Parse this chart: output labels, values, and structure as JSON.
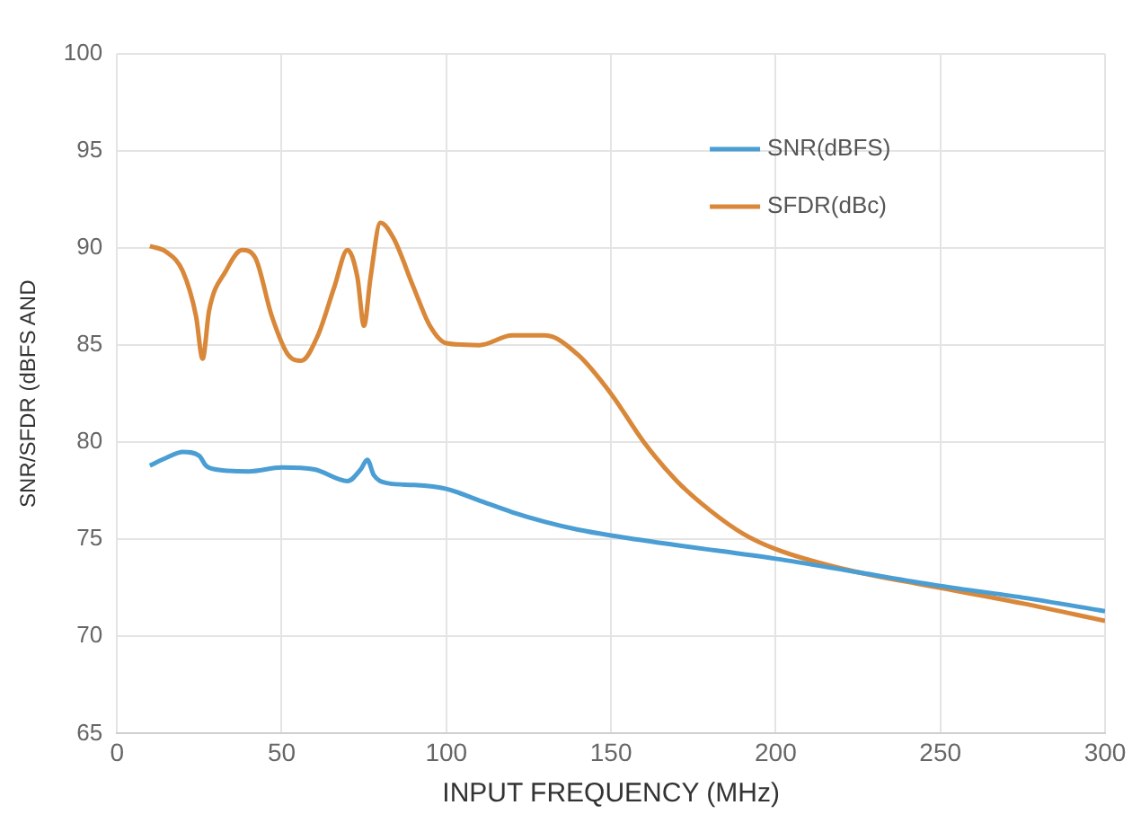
{
  "chart_data": {
    "type": "line",
    "xlabel": "INPUT FREQUENCY (MHz)",
    "ylabel": "SNR/SFDR (dBFS AND",
    "xlim": [
      0,
      300
    ],
    "xticks": [
      0,
      50,
      100,
      150,
      200,
      250,
      300
    ],
    "ylim": [
      65,
      100
    ],
    "yticks": [
      65,
      70,
      75,
      80,
      85,
      90,
      95,
      100
    ],
    "grid": true,
    "legend": "top right",
    "marker": "none",
    "line_style": "solid",
    "series": [
      {
        "name": "SNR(dBFS)",
        "color": "#4a9ed4",
        "x": [
          10,
          15,
          20,
          25,
          27,
          30,
          40,
          50,
          60,
          70,
          74,
          76,
          78,
          82,
          90,
          100,
          110,
          120,
          130,
          140,
          150,
          170,
          200,
          225,
          250,
          275,
          300
        ],
        "values": [
          78.8,
          79.2,
          79.5,
          79.3,
          78.8,
          78.6,
          78.5,
          78.7,
          78.6,
          78,
          78.6,
          79.1,
          78.3,
          77.9,
          77.8,
          77.6,
          77,
          76.4,
          75.9,
          75.5,
          75.2,
          74.7,
          74,
          73.3,
          72.6,
          72,
          71.3
        ]
      },
      {
        "name": "SFDR(dBc)",
        "color": "#d9883a",
        "x": [
          10,
          15,
          20,
          24,
          26,
          28,
          33,
          38,
          42,
          47,
          52,
          56,
          61,
          66,
          70,
          73,
          75,
          77,
          80,
          84,
          90,
          95,
          100,
          110,
          120,
          130,
          140,
          150,
          160,
          170,
          180,
          190,
          200,
          220,
          250,
          275,
          300
        ],
        "values": [
          90.1,
          89.8,
          88.8,
          86.5,
          84.3,
          86.8,
          88.8,
          89.9,
          89.5,
          86.5,
          84.5,
          84.2,
          85.5,
          88,
          89.9,
          88.5,
          86,
          88.5,
          91.3,
          90.5,
          88,
          86,
          85.1,
          85,
          85.5,
          85.5,
          84.5,
          82.5,
          80,
          78,
          76.5,
          75.3,
          74.5,
          73.5,
          72.5,
          71.7,
          70.8
        ]
      }
    ]
  }
}
